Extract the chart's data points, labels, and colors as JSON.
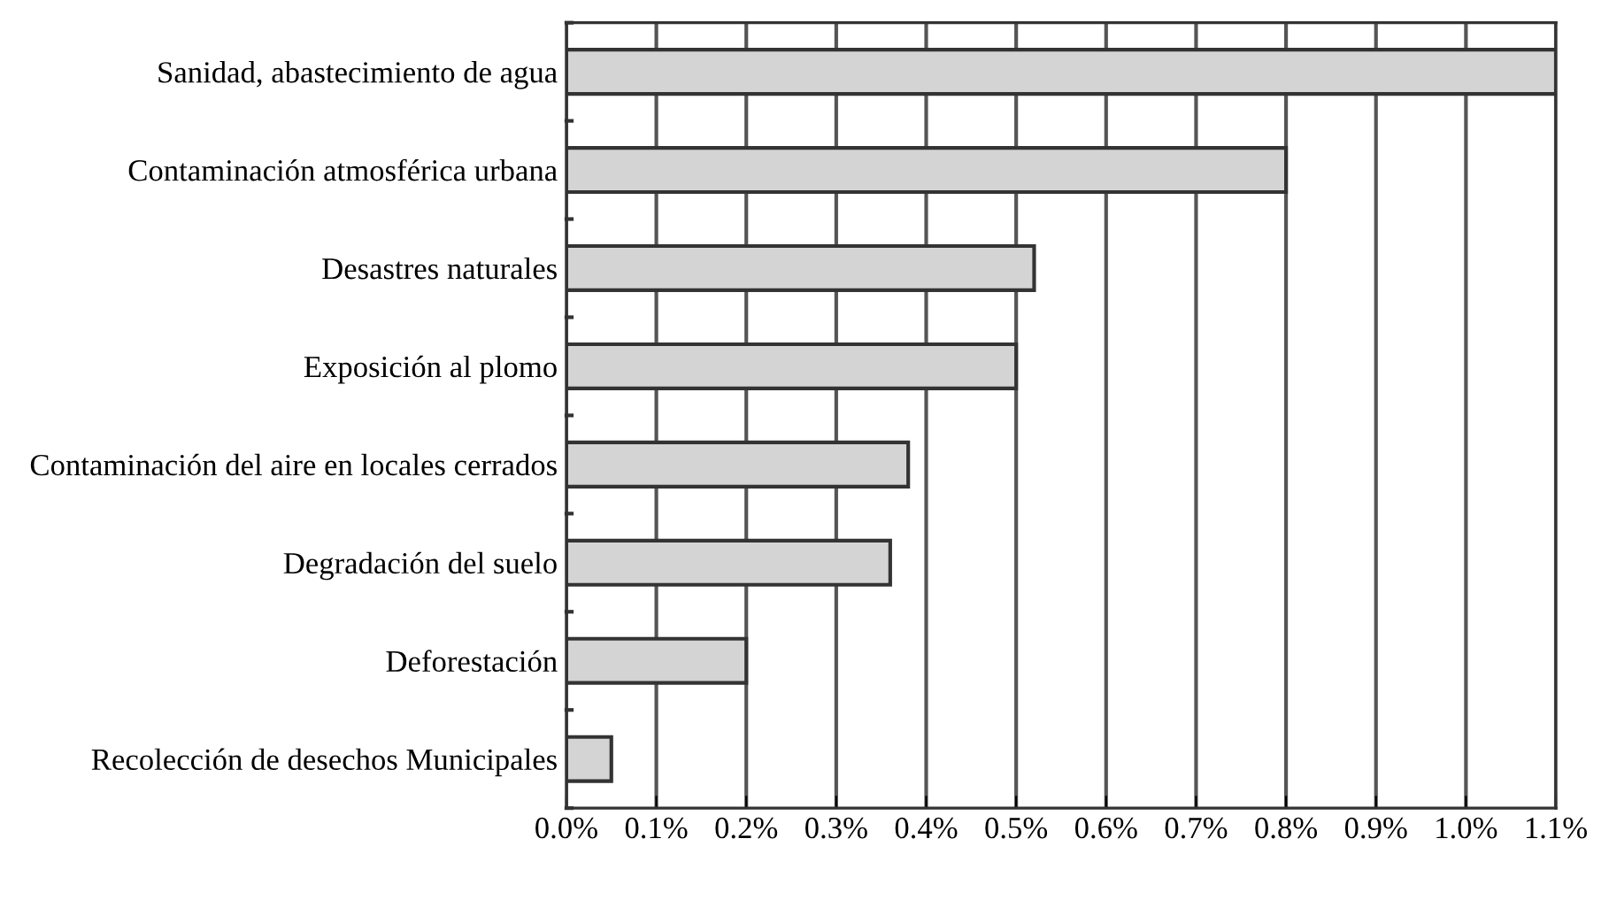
{
  "chart_data": {
    "type": "bar",
    "orientation": "horizontal",
    "categories": [
      "Sanidad, abastecimiento de agua",
      "Contaminación atmosférica urbana",
      "Desastres naturales",
      "Exposición al plomo",
      "Contaminación del aire en locales cerrados",
      "Degradación del suelo",
      "Deforestación",
      "Recolección de desechos Municipales"
    ],
    "values": [
      1.1,
      0.8,
      0.52,
      0.5,
      0.38,
      0.36,
      0.2,
      0.05
    ],
    "color": "#d4d4d4",
    "xlim": [
      0,
      1.1
    ],
    "xticks": [
      {
        "value": 0,
        "label": "0.0%"
      },
      {
        "value": 0.1,
        "label": "0.1%"
      },
      {
        "value": 0.2,
        "label": "0.2%"
      },
      {
        "value": 0.3,
        "label": "0.3%"
      },
      {
        "value": 0.4,
        "label": "0.4%"
      },
      {
        "value": 0.5,
        "label": "0.5%"
      },
      {
        "value": 0.6,
        "label": "0.6%"
      },
      {
        "value": 0.7,
        "label": "0.7%"
      },
      {
        "value": 0.8,
        "label": "0.8%"
      },
      {
        "value": 0.9,
        "label": "0.9%"
      },
      {
        "value": 1.0,
        "label": "1.0%"
      },
      {
        "value": 1.1,
        "label": "1.1%"
      }
    ],
    "grid": "x"
  }
}
